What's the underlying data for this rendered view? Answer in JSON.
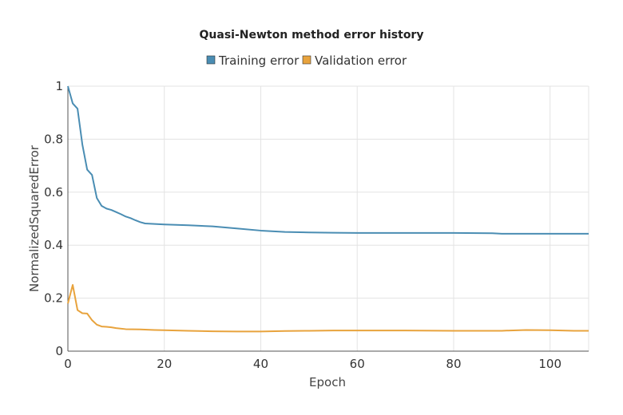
{
  "chart_data": {
    "type": "line",
    "title": "Quasi-Newton method error history",
    "xlabel": "Epoch",
    "ylabel": "NormalizedSquaredError",
    "xlim": [
      0,
      108
    ],
    "ylim": [
      0,
      1
    ],
    "xticks": [
      0,
      20,
      40,
      60,
      80,
      100
    ],
    "yticks": [
      0,
      0.2,
      0.4,
      0.6,
      0.8,
      1
    ],
    "ytick_labels": [
      "0",
      "0.2",
      "0.4",
      "0.6",
      "0.8",
      "1"
    ],
    "grid": true,
    "legend_position": "top-center",
    "series": [
      {
        "name": "Training error",
        "color": "#4a8db3",
        "x": [
          0,
          1,
          2,
          3,
          4,
          5,
          6,
          7,
          8,
          9,
          10,
          11,
          12,
          13,
          14,
          15,
          16,
          18,
          20,
          25,
          30,
          35,
          40,
          45,
          50,
          55,
          60,
          70,
          80,
          88,
          90,
          100,
          108
        ],
        "y": [
          1.0,
          0.935,
          0.915,
          0.78,
          0.685,
          0.665,
          0.578,
          0.548,
          0.538,
          0.533,
          0.525,
          0.517,
          0.508,
          0.502,
          0.494,
          0.487,
          0.482,
          0.48,
          0.478,
          0.475,
          0.471,
          0.463,
          0.455,
          0.45,
          0.448,
          0.447,
          0.446,
          0.446,
          0.446,
          0.445,
          0.443,
          0.443,
          0.443
        ]
      },
      {
        "name": "Validation error",
        "color": "#e8a33d",
        "x": [
          0,
          1,
          2,
          3,
          4,
          5,
          6,
          7,
          8,
          9,
          10,
          12,
          15,
          18,
          20,
          25,
          30,
          35,
          40,
          45,
          50,
          55,
          60,
          70,
          80,
          90,
          95,
          100,
          105,
          108
        ],
        "y": [
          0.18,
          0.25,
          0.155,
          0.143,
          0.142,
          0.117,
          0.1,
          0.093,
          0.092,
          0.09,
          0.087,
          0.083,
          0.082,
          0.08,
          0.079,
          0.077,
          0.075,
          0.074,
          0.074,
          0.076,
          0.077,
          0.078,
          0.078,
          0.078,
          0.077,
          0.077,
          0.08,
          0.079,
          0.077,
          0.077
        ]
      }
    ]
  }
}
